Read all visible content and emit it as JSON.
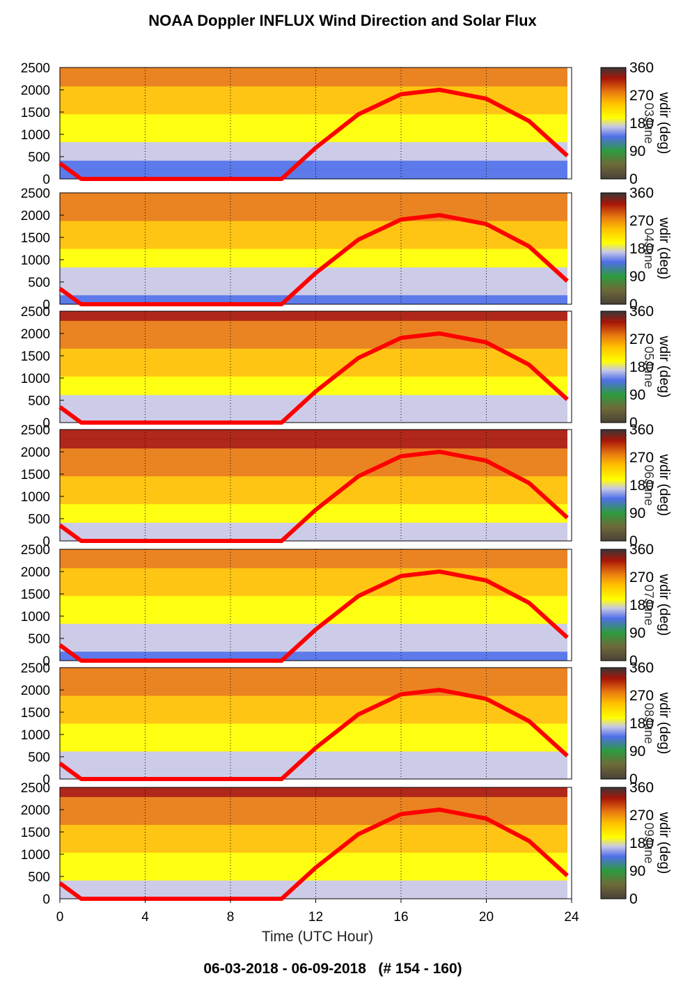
{
  "title": "NOAA Doppler INFLUX Wind Direction and Solar Flux",
  "footer": "06-03-2018 - 06-09-2018   (# 154 - 160)",
  "x_axis_label": "Time (UTC Hour)",
  "colorbar_label": "wdir (deg)",
  "colors": {
    "solar_flux": "#ff0000",
    "colormap": [
      "#4a4236",
      "#6e6a3a",
      "#2e9b3c",
      "#4f6fe8",
      "#c8c8e6",
      "#ffff00",
      "#ffc000",
      "#e87a10",
      "#a81608",
      "#3a3636"
    ]
  },
  "chart_data": {
    "type": "heatmap",
    "x_ticks": [
      "0",
      "4",
      "8",
      "12",
      "16",
      "20",
      "24"
    ],
    "x_range": [
      0,
      24
    ],
    "y_ticks": [
      "0",
      "500",
      "1000",
      "1500",
      "2000",
      "2500"
    ],
    "y_range": [
      0,
      2500
    ],
    "colorbar_ticks": [
      "0",
      "90",
      "180",
      "270",
      "360"
    ],
    "colorbar_range": [
      0,
      360
    ],
    "grid": "dotted vertical lines every 4 hours",
    "solar_flux_curve": {
      "x": [
        0,
        1,
        2,
        4,
        6,
        8,
        10.4,
        12,
        14,
        16,
        17.8,
        20,
        22,
        23.8
      ],
      "y": [
        350,
        0,
        0,
        0,
        0,
        0,
        0,
        700,
        1450,
        1900,
        2000,
        1800,
        1300,
        520
      ]
    },
    "panels": [
      {
        "day_label": "03June"
      },
      {
        "day_label": "04June"
      },
      {
        "day_label": "05June"
      },
      {
        "day_label": "06June"
      },
      {
        "day_label": "07June"
      },
      {
        "day_label": "08June"
      },
      {
        "day_label": "09June"
      }
    ]
  }
}
